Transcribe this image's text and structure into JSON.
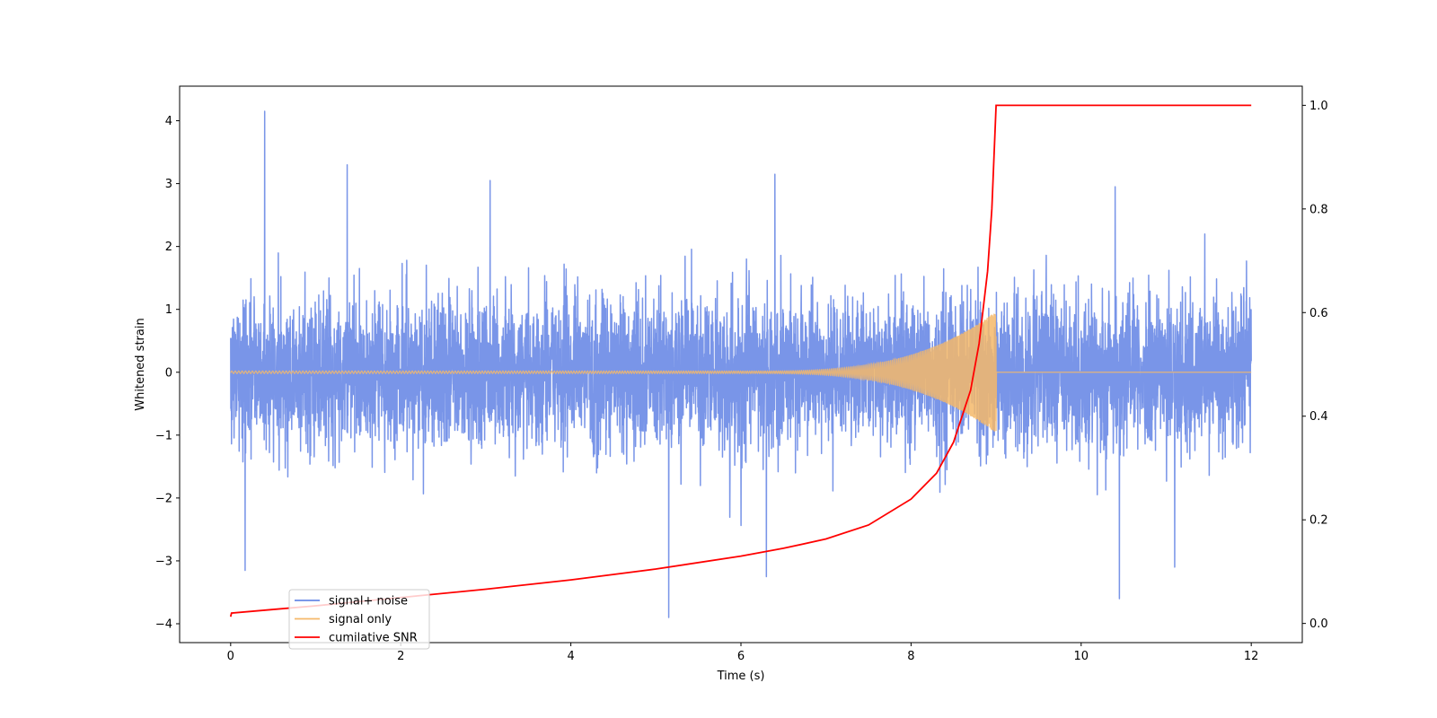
{
  "chart_data": {
    "type": "line",
    "title": "",
    "xlabel": "Time (s)",
    "ylabel": "Whitened strain",
    "y2label": "",
    "xlim": [
      -0.6,
      12.6
    ],
    "ylim": [
      -4.3,
      4.55
    ],
    "y2lim": [
      -0.037,
      1.037
    ],
    "xticks": [
      0,
      2,
      4,
      6,
      8,
      10,
      12
    ],
    "yticks": [
      -4,
      -3,
      -2,
      -1,
      0,
      1,
      2,
      3,
      4
    ],
    "y2ticks": [
      0.0,
      0.2,
      0.4,
      0.6,
      0.8,
      1.0
    ],
    "y2ticklabels": [
      "0.0",
      "0.2",
      "0.4",
      "0.6",
      "0.8",
      "1.0"
    ],
    "grid": false,
    "legend_position": "lower-left",
    "series": [
      {
        "name": "signal+ noise",
        "axis": "left",
        "color": "#6a8ae6",
        "kind": "noise",
        "x_range": [
          0,
          12
        ],
        "typical_sigma": 0.95,
        "peaks": [
          {
            "x": 0.4,
            "y": 4.15
          },
          {
            "x": 1.37,
            "y": 3.3
          },
          {
            "x": 3.05,
            "y": 3.05
          },
          {
            "x": 6.4,
            "y": 3.15
          },
          {
            "x": 10.4,
            "y": 2.95
          },
          {
            "x": 0.17,
            "y": -3.15
          },
          {
            "x": 5.15,
            "y": -3.9
          },
          {
            "x": 6.3,
            "y": -3.25
          },
          {
            "x": 10.45,
            "y": -3.6
          },
          {
            "x": 11.1,
            "y": -3.1
          }
        ]
      },
      {
        "name": "signal only",
        "axis": "left",
        "color": "#f5b96a",
        "kind": "chirp",
        "x_range": [
          0,
          12
        ],
        "merger_time": 9.0,
        "peak_amplitude": 0.95
      },
      {
        "name": "cumilative SNR",
        "axis": "right",
        "color": "#ff0000",
        "kind": "curve",
        "x": [
          0.0,
          0.01,
          0.5,
          1.0,
          2.0,
          3.0,
          4.0,
          5.0,
          6.0,
          6.5,
          7.0,
          7.5,
          8.0,
          8.3,
          8.5,
          8.7,
          8.8,
          8.9,
          8.95,
          9.0,
          12.0
        ],
        "y": [
          0.013,
          0.02,
          0.027,
          0.034,
          0.05,
          0.066,
          0.084,
          0.105,
          0.13,
          0.145,
          0.163,
          0.19,
          0.24,
          0.29,
          0.35,
          0.45,
          0.54,
          0.68,
          0.8,
          1.0,
          1.0
        ]
      }
    ]
  }
}
